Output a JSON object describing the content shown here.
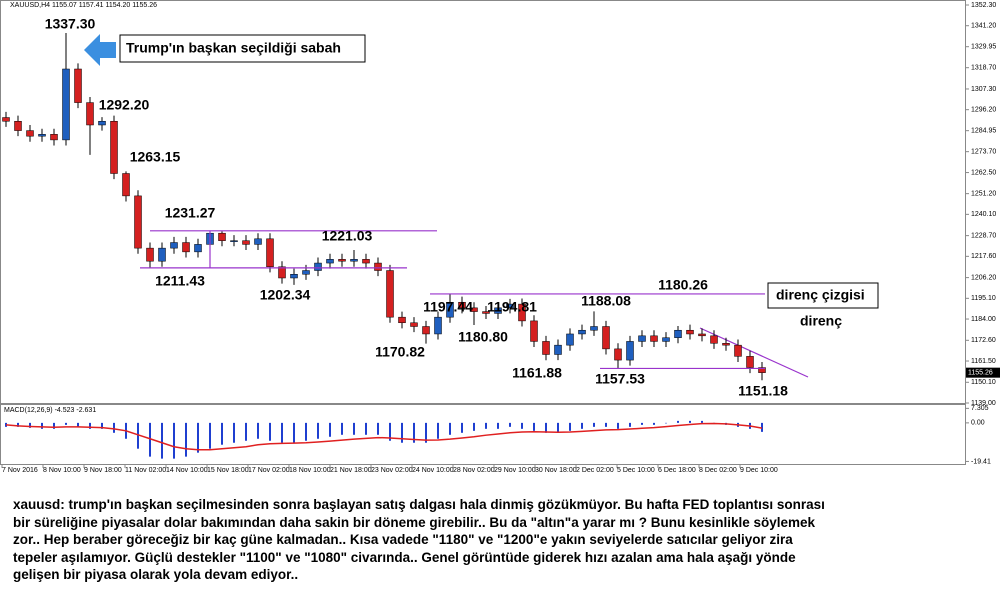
{
  "chart_data": [
    {
      "type": "candlestick",
      "title": "XAUUSD,H4  1155.07 1157.41 1154.20 1155.26",
      "up_color": "#1f5fbf",
      "down_color": "#d42020",
      "open": [
        1292,
        1290,
        1285,
        1282,
        1283,
        1280,
        1318,
        1300,
        1288,
        1290,
        1262,
        1250,
        1222,
        1215,
        1222,
        1225,
        1220,
        1224,
        1230,
        1226,
        1226,
        1224,
        1227,
        1212,
        1206,
        1208,
        1210,
        1214,
        1216,
        1215,
        1216,
        1214,
        1210,
        1185,
        1182,
        1180,
        1176,
        1185,
        1193,
        1190,
        1188,
        1187,
        1190,
        1192,
        1183,
        1172,
        1165,
        1170,
        1176,
        1178,
        1180,
        1168,
        1162,
        1172,
        1175,
        1172,
        1174,
        1178,
        1176,
        1175,
        1171,
        1170,
        1164,
        1158
      ],
      "high": [
        1295,
        1293,
        1288,
        1286,
        1286,
        1337.3,
        1321,
        1303,
        1292.2,
        1293,
        1263.15,
        1253,
        1225,
        1225,
        1228,
        1228,
        1227,
        1231.27,
        1231,
        1229,
        1229,
        1230,
        1230,
        1215,
        1211,
        1213,
        1217,
        1219,
        1219,
        1221.03,
        1219,
        1217,
        1213,
        1188,
        1185,
        1183,
        1188,
        1197.44,
        1196,
        1193,
        1191,
        1193,
        1194.81,
        1195,
        1186,
        1175,
        1173,
        1179,
        1181,
        1188.08,
        1183,
        1171,
        1175,
        1178,
        1178,
        1177,
        1180.26,
        1181,
        1179,
        1178,
        1174,
        1173,
        1167,
        1161
      ],
      "low": [
        1287,
        1282,
        1279,
        1279,
        1277,
        1277,
        1297,
        1272,
        1285,
        1259,
        1247,
        1219,
        1211.43,
        1212,
        1219,
        1217,
        1217,
        1221,
        1223,
        1223,
        1221,
        1221,
        1209,
        1203,
        1202.34,
        1205,
        1207,
        1211,
        1212,
        1212,
        1211,
        1207,
        1182,
        1179,
        1177,
        1170.82,
        1173,
        1182,
        1187,
        1180.8,
        1184,
        1184,
        1187,
        1180,
        1169,
        1161.88,
        1162,
        1167,
        1173,
        1175,
        1165,
        1157.53,
        1159,
        1169,
        1169,
        1169,
        1171,
        1173,
        1172,
        1168,
        1167,
        1161,
        1155,
        1151.18
      ],
      "close": [
        1290,
        1285,
        1282,
        1283,
        1280,
        1318,
        1300,
        1288,
        1290,
        1262,
        1250,
        1222,
        1215,
        1222,
        1225,
        1220,
        1224,
        1230,
        1226,
        1226,
        1224,
        1227,
        1212,
        1206,
        1208,
        1210,
        1214,
        1216,
        1215,
        1216,
        1214,
        1210,
        1185,
        1182,
        1180,
        1176,
        1185,
        1193,
        1190,
        1188,
        1187,
        1190,
        1192,
        1183,
        1172,
        1165,
        1170,
        1176,
        1178,
        1180,
        1168,
        1162,
        1172,
        1175,
        1172,
        1174,
        1178,
        1176,
        1175,
        1171,
        1170,
        1164,
        1158,
        1155.26
      ],
      "ylim": [
        1139,
        1352.3
      ],
      "yticks": [
        {
          "value": 1352.3,
          "label": "1352.30"
        },
        {
          "value": 1341.2,
          "label": "1341.20"
        },
        {
          "value": 1329.95,
          "label": "1329.95"
        },
        {
          "value": 1318.7,
          "label": "1318.70"
        },
        {
          "value": 1307.3,
          "label": "1307.30"
        },
        {
          "value": 1296.2,
          "label": "1296.20"
        },
        {
          "value": 1284.95,
          "label": "1284.95"
        },
        {
          "value": 1273.7,
          "label": "1273.70"
        },
        {
          "value": 1262.5,
          "label": "1262.50"
        },
        {
          "value": 1251.2,
          "label": "1251.20"
        },
        {
          "value": 1240.1,
          "label": "1240.10"
        },
        {
          "value": 1228.7,
          "label": "1228.70"
        },
        {
          "value": 1217.6,
          "label": "1217.60"
        },
        {
          "value": 1206.2,
          "label": "1206.20"
        },
        {
          "value": 1195.1,
          "label": "1195.10"
        },
        {
          "value": 1184,
          "label": "1184.00"
        },
        {
          "value": 1172.6,
          "label": "1172.60"
        },
        {
          "value": 1161.5,
          "label": "1161.50"
        },
        {
          "value": 1150.1,
          "label": "1150.10"
        },
        {
          "value": 1139,
          "label": "1139.00"
        }
      ],
      "x_labels": [
        "7 Nov 2016",
        "8 Nov 10:00",
        "9 Nov 18:00",
        "11 Nov 02:00",
        "14 Nov 10:00",
        "15 Nov 18:00",
        "17 Nov 02:00",
        "18 Nov 10:00",
        "21 Nov 18:00",
        "23 Nov 02:00",
        "24 Nov 10:00",
        "28 Nov 02:00",
        "29 Nov 10:00",
        "30 Nov 18:00",
        "2 Dec 02:00",
        "5 Dec 10:00",
        "6 Dec 18:00",
        "8 Dec 02:00",
        "9 Dec 10:00"
      ],
      "annotations": [
        "1337.30",
        "1292.20",
        "1263.15",
        "1231.27",
        "1211.43",
        "1202.34",
        "1221.03",
        "1197.44",
        "1194.81",
        "1170.82",
        "1180.80",
        "1161.88",
        "1188.08",
        "1157.53",
        "1180.26",
        "1151.18"
      ],
      "line_color": "#9933cc",
      "callouts": {
        "trump": "Trump'ın başkan seçildiği sabah",
        "resistance": "direnç",
        "resistance_line": "direnç çizgisi"
      }
    },
    {
      "type": "macd",
      "title": "MACD(12,26,9) -4.523 -2.631",
      "histogram": {
        "color": "#1f3fd0",
        "values": [
          -2,
          -2,
          -2.5,
          -3,
          -3,
          -1,
          -2,
          -3,
          -3,
          -5,
          -8,
          -13,
          -17,
          -18,
          -18,
          -17,
          -15,
          -13,
          -11,
          -10,
          -9,
          -8,
          -9,
          -10,
          -10,
          -9,
          -8,
          -7,
          -6,
          -6,
          -6,
          -6,
          -9,
          -10,
          -10,
          -10,
          -8,
          -6,
          -5,
          -4,
          -3,
          -3,
          -2,
          -3,
          -4,
          -5,
          -5,
          -4,
          -3,
          -2,
          -2,
          -3,
          -2,
          -1,
          -1,
          0,
          1,
          1,
          1,
          0,
          -1,
          -2,
          -3,
          -4.523
        ]
      },
      "signal": {
        "color": "#e02020",
        "values": [
          -1,
          -1.5,
          -1.8,
          -2,
          -2.2,
          -2,
          -2,
          -2.2,
          -2.4,
          -3,
          -4,
          -6,
          -8,
          -10,
          -12,
          -13,
          -13.5,
          -13.5,
          -13,
          -12.5,
          -12,
          -11,
          -10.5,
          -10.3,
          -10.2,
          -10,
          -9.6,
          -9.2,
          -8.7,
          -8.2,
          -7.8,
          -7.4,
          -7.6,
          -8,
          -8.4,
          -8.7,
          -8.6,
          -8.2,
          -7.6,
          -7,
          -6.2,
          -5.6,
          -5,
          -4.6,
          -4.5,
          -4.6,
          -4.7,
          -4.6,
          -4.3,
          -3.9,
          -3.5,
          -3.4,
          -3.1,
          -2.7,
          -2.4,
          -1.9,
          -1.3,
          -0.8,
          -0.4,
          -0.3,
          -0.5,
          -1,
          -1.6,
          -2.631
        ]
      },
      "ylim": [
        -20.2,
        9.5
      ],
      "yticks": [
        7.305,
        {
          "value": 0,
          "label": "0.00"
        },
        -19.41
      ]
    }
  ],
  "caption": [
    "xauusd: trump'ın başkan seçilmesinden sonra başlayan satış dalgası hala dinmiş gözükmüyor. Bu hafta FED toplantısı sonrası",
    "bir süreliğine piyasalar dolar bakımından daha sakin bir döneme girebilir.. Bu da \"altın\"a yarar mı ? Bunu kesinlikle söylemek",
    "zor.. Hep beraber göreceğiz bir kaç güne kalmadan.. Kısa vadede \"1180\" ve \"1200\"e yakın seviyelerde satıcılar geliyor zira",
    "tepeler aşılamıyor. Güçlü destekler \"1100\" ve \"1080\" civarında.. Genel görüntüde giderek hızı azalan ama hala aşağı yönde",
    "gelişen bir piyasa olarak yola devam ediyor.."
  ]
}
